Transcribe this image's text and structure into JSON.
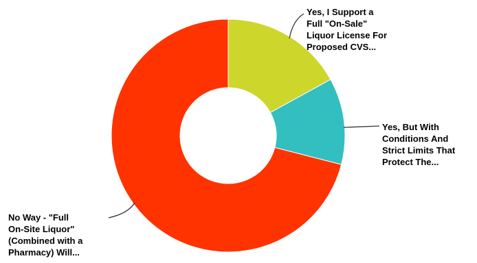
{
  "chart_data": {
    "type": "pie",
    "donut": true,
    "series": [
      {
        "values": [
          17,
          12,
          71
        ],
        "labels": [
          [
            "Yes, I Support a",
            "Full \"On-Sale\"",
            "Liquor License For",
            "Proposed CVS..."
          ],
          [
            "Yes, But With",
            "Conditions And",
            "Strict Limits That",
            "Protect The..."
          ],
          [
            "No Way - \"Full",
            "On-Site Liquor\"",
            "(Combined with a",
            "Pharmacy) Will..."
          ]
        ],
        "colors": [
          "#CDD62B",
          "#33BFBF",
          "#FF3300"
        ]
      }
    ],
    "legend": "none"
  }
}
